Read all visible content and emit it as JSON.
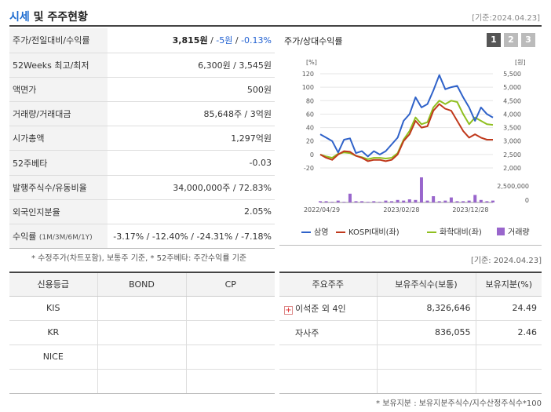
{
  "header": {
    "title_accent": "시세",
    "title_rest": " 및 주주현황",
    "base_date": "[기준:2024.04.23]"
  },
  "market": {
    "rows": [
      {
        "label": "주가/전일대비/수익률",
        "price": "3,815원",
        "sep1": " / ",
        "change": "-5원",
        "sep2": " / ",
        "rate": "-0.13%"
      },
      {
        "label": "52Weeks 최고/최저",
        "value": "6,300원 / 3,545원"
      },
      {
        "label": "액면가",
        "value": "500원"
      },
      {
        "label": "거래량/거래대금",
        "value": "85,648주 / 3억원"
      },
      {
        "label": "시가총액",
        "value": "1,297억원"
      },
      {
        "label": "52주베타",
        "value": "-0.03"
      },
      {
        "label": "발행주식수/유동비율",
        "value": "34,000,000주 / 72.83%"
      },
      {
        "label": "외국인지분율",
        "value": "2.05%"
      },
      {
        "label": "수익률",
        "label_small": "(1M/3M/6M/1Y)",
        "value": "-3.17% / -12.40% / -24.31% / -7.18%"
      }
    ],
    "footnote": "* 수정주가(차트포함), 보통주 기준, * 52주베타: 주간수익률 기준"
  },
  "chart_panel": {
    "title": "주가/상대수익률",
    "tabs": [
      "1",
      "2",
      "3"
    ],
    "active_tab": "1",
    "base_date": "[기준: 2024.04.23]"
  },
  "chart_data": {
    "type": "line",
    "left_unit": "[%]",
    "right_unit": "[원]",
    "left_ticks": [
      120,
      100,
      80,
      60,
      40,
      20,
      0,
      -20
    ],
    "right_ticks": [
      "5,500",
      "5,000",
      "4,500",
      "4,000",
      "3,500",
      "3,000",
      "2,500",
      "2,000"
    ],
    "volume_tick": "2,500,000",
    "x_labels": [
      "2022/04/29",
      "2023/02/28",
      "2023/12/28"
    ],
    "series": [
      {
        "name": "삼영",
        "color": "#2f62c9",
        "values": [
          30,
          25,
          20,
          3,
          22,
          24,
          2,
          5,
          -3,
          5,
          0,
          5,
          15,
          25,
          50,
          60,
          85,
          70,
          75,
          95,
          118,
          97,
          100,
          102,
          85,
          70,
          50,
          70,
          60,
          55
        ]
      },
      {
        "name": "KOSPI대비(좌)",
        "color": "#c0391c",
        "values": [
          0,
          -5,
          -8,
          0,
          5,
          4,
          -2,
          -5,
          -10,
          -8,
          -8,
          -10,
          -8,
          0,
          20,
          30,
          50,
          40,
          42,
          65,
          75,
          68,
          65,
          50,
          35,
          25,
          30,
          25,
          22,
          22
        ]
      },
      {
        "name": "화학대비(좌)",
        "color": "#8fbf1f",
        "values": [
          0,
          -3,
          -5,
          1,
          3,
          2,
          -2,
          -4,
          -7,
          -5,
          -5,
          -6,
          -5,
          2,
          22,
          35,
          55,
          45,
          48,
          70,
          80,
          75,
          80,
          78,
          60,
          45,
          55,
          50,
          45,
          44
        ]
      }
    ],
    "volume": {
      "name": "거래량",
      "color": "#9966cc",
      "values": [
        2,
        2,
        1,
        3,
        1,
        14,
        2,
        2,
        1,
        2,
        1,
        3,
        2,
        4,
        3,
        5,
        4,
        40,
        3,
        10,
        2,
        3,
        8,
        2,
        2,
        3,
        12,
        4,
        2,
        3
      ]
    }
  },
  "credit": {
    "headers": [
      "신용등급",
      "BOND",
      "CP"
    ],
    "rows": [
      [
        "KIS",
        "",
        ""
      ],
      [
        "KR",
        "",
        ""
      ],
      [
        "NICE",
        "",
        ""
      ],
      [
        "",
        "",
        ""
      ]
    ]
  },
  "holders": {
    "headers": [
      "주요주주",
      "보유주식수(보통)",
      "보유지분(%)"
    ],
    "rows": [
      {
        "name": "이석준 외 4인",
        "shares": "8,326,646",
        "ratio": "24.49",
        "has_icon": true
      },
      {
        "name": "자사주",
        "shares": "836,055",
        "ratio": "2.46",
        "has_icon": false
      },
      {
        "name": "",
        "shares": "",
        "ratio": ""
      },
      {
        "name": "",
        "shares": "",
        "ratio": ""
      }
    ],
    "footnote": "* 보유지분 : 보유지분주식수/지수산정주식수*100"
  }
}
